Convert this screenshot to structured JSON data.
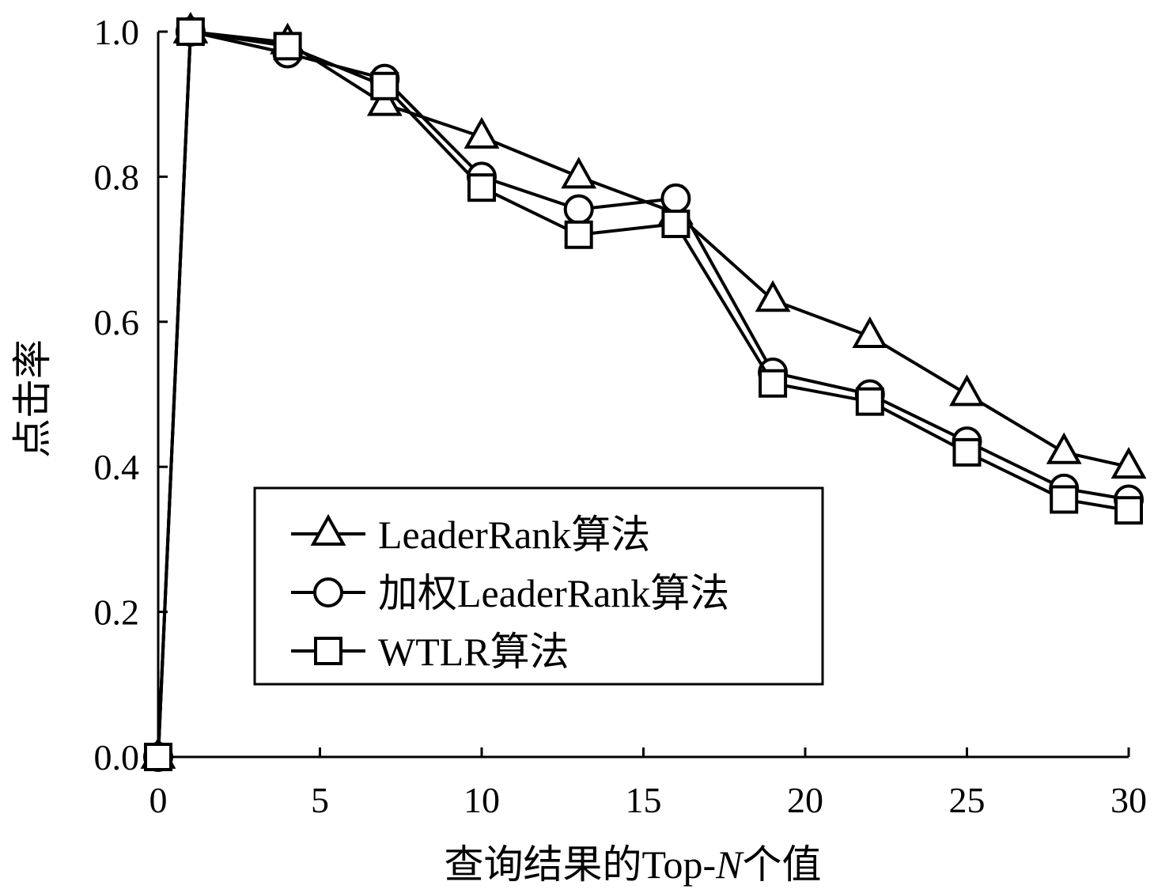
{
  "chart_data": {
    "type": "line",
    "xlabel_prefix": "查询结果的Top-",
    "xlabel_italic": "N",
    "xlabel_suffix": "个值",
    "ylabel": "点击率",
    "xlim": [
      0,
      30
    ],
    "ylim": [
      0,
      1.0
    ],
    "xticks": [
      "0",
      "5",
      "10",
      "15",
      "20",
      "25",
      "30"
    ],
    "yticks": [
      "0.0",
      "0.2",
      "0.4",
      "0.6",
      "0.8",
      "1.0"
    ],
    "grid": false,
    "legend_position": "center-left",
    "series": [
      {
        "name": "LeaderRank算法",
        "marker": "triangle",
        "x": [
          0,
          1,
          4,
          7,
          10,
          13,
          16,
          19,
          22,
          25,
          28,
          30
        ],
        "y": [
          0.0,
          1.0,
          0.985,
          0.9,
          0.855,
          0.8,
          0.75,
          0.63,
          0.58,
          0.5,
          0.42,
          0.4
        ]
      },
      {
        "name": "加权LeaderRank算法",
        "marker": "circle",
        "x": [
          0,
          1,
          4,
          7,
          10,
          13,
          16,
          19,
          22,
          25,
          28,
          30
        ],
        "y": [
          0.0,
          1.0,
          0.97,
          0.935,
          0.8,
          0.755,
          0.77,
          0.53,
          0.5,
          0.435,
          0.37,
          0.355
        ]
      },
      {
        "name": "WTLR算法",
        "marker": "square",
        "x": [
          0,
          1,
          4,
          7,
          10,
          13,
          16,
          19,
          22,
          25,
          28,
          30
        ],
        "y": [
          0.0,
          1.0,
          0.98,
          0.925,
          0.785,
          0.72,
          0.735,
          0.515,
          0.49,
          0.42,
          0.355,
          0.34
        ]
      }
    ]
  }
}
